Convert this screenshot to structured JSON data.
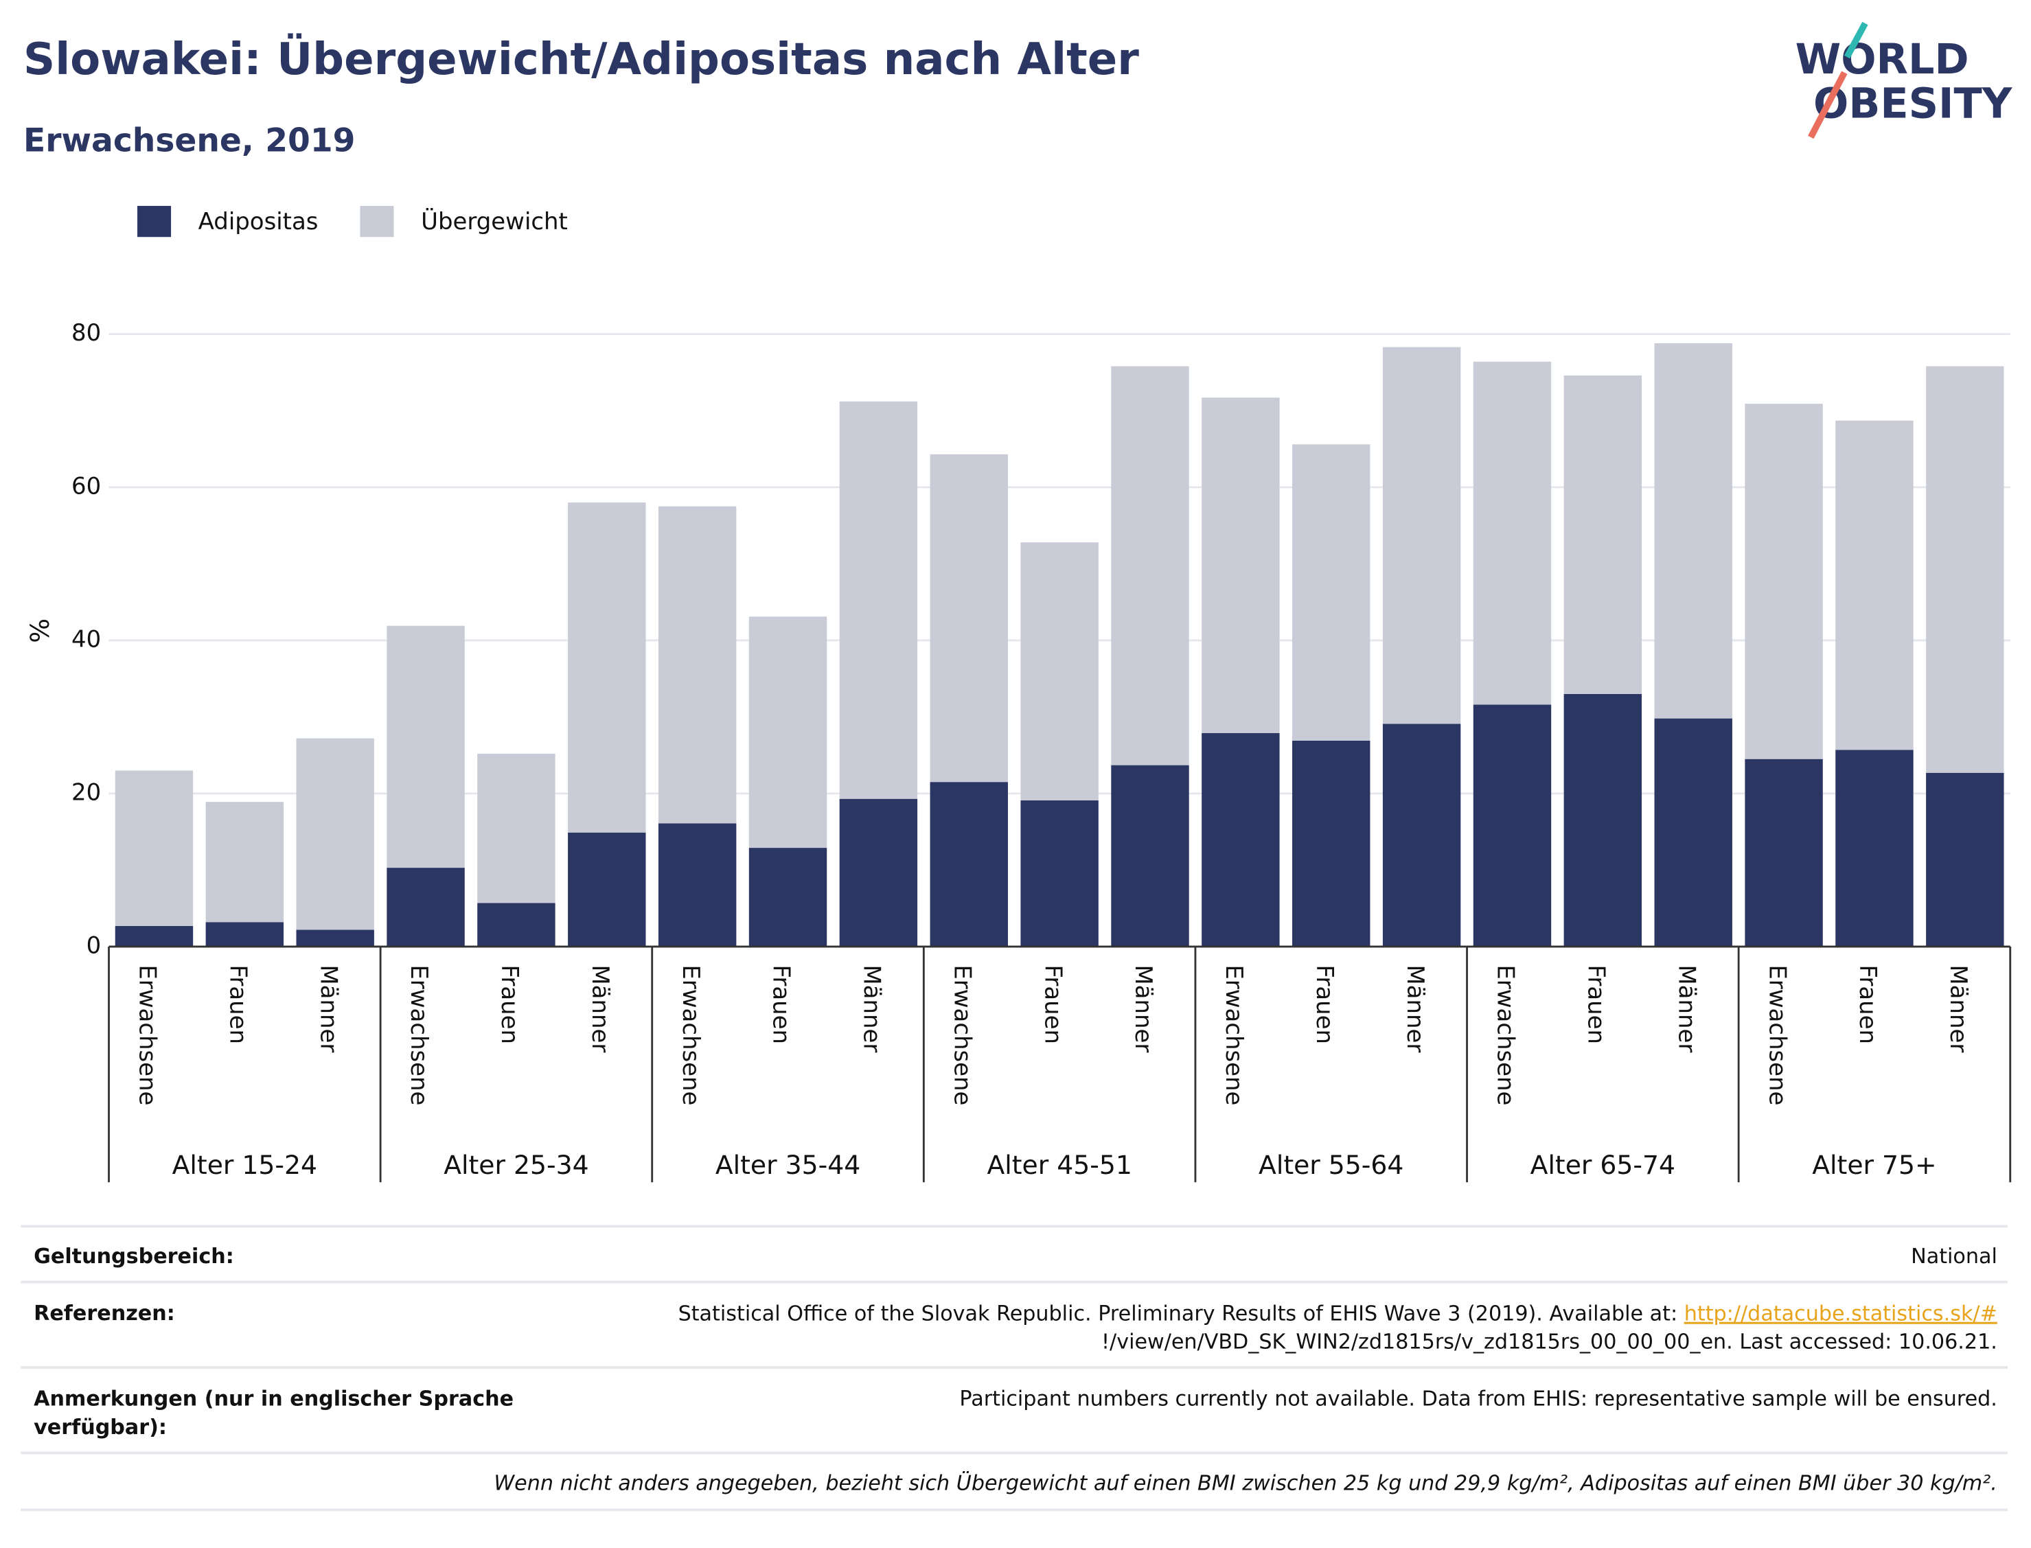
{
  "header": {
    "title": "Slowakei: Übergewicht/Adipositas nach Alter",
    "subtitle": "Erwachsene, 2019",
    "logo": [
      "WORLD",
      "OBESITY"
    ]
  },
  "chart_data": {
    "type": "bar",
    "stacked": true,
    "categories": [
      "Erwachsene",
      "Frauen",
      "Männer",
      "Erwachsene",
      "Frauen",
      "Männer",
      "Erwachsene",
      "Frauen",
      "Männer",
      "Erwachsene",
      "Frauen",
      "Männer",
      "Erwachsene",
      "Frauen",
      "Männer",
      "Erwachsene",
      "Frauen",
      "Männer",
      "Erwachsene",
      "Frauen",
      "Männer"
    ],
    "groups": [
      "Alter 15-24",
      "Alter 25-34",
      "Alter 35-44",
      "Alter 45-51",
      "Alter 55-64",
      "Alter 65-74",
      "Alter 75+"
    ],
    "series": [
      {
        "name": "Adipositas",
        "color": "#2b3663",
        "values": [
          2.7,
          3.2,
          2.2,
          10.3,
          5.7,
          14.9,
          16.1,
          12.9,
          19.3,
          21.5,
          19.1,
          23.7,
          27.9,
          26.9,
          29.1,
          31.6,
          33.0,
          29.8,
          24.5,
          25.7,
          22.7
        ]
      },
      {
        "name": "Übergewicht",
        "color": "#c9cbd7",
        "values": [
          20.3,
          15.7,
          25.0,
          31.6,
          19.5,
          43.1,
          41.4,
          30.2,
          51.9,
          42.8,
          33.7,
          52.1,
          43.8,
          38.7,
          49.2,
          44.8,
          41.6,
          49.0,
          46.4,
          43.0,
          53.1
        ]
      }
    ],
    "ylabel": "%",
    "ylim": [
      0,
      80
    ],
    "yticks": [
      0,
      20,
      40,
      60,
      80
    ],
    "grid": true,
    "legend": "top-left"
  },
  "footer": {
    "rows": [
      {
        "label": "Geltungsbereich:",
        "value": "National"
      },
      {
        "label": "Referenzen:",
        "text": "Statistical Office of the Slovak Republic. Preliminary Results of EHIS Wave 3 (2019). Available at: ",
        "link": "http://datacube.statistics.sk/#",
        "rest": "!/view/en/VBD_SK_WIN2/zd1815rs/v_zd1815rs_00_00_00_en. Last accessed: 10.06.21."
      },
      {
        "label": [
          "Anmerkungen (nur in englischer Sprache",
          "verfügbar):"
        ],
        "value": "Participant numbers currently not available. Data from EHIS: representative sample will be ensured."
      }
    ],
    "note": "Wenn nicht anders angegeben, bezieht sich Übergewicht auf einen BMI zwischen 25 kg und 29,9 kg/m², Adipositas auf einen BMI über 30 kg/m²."
  }
}
